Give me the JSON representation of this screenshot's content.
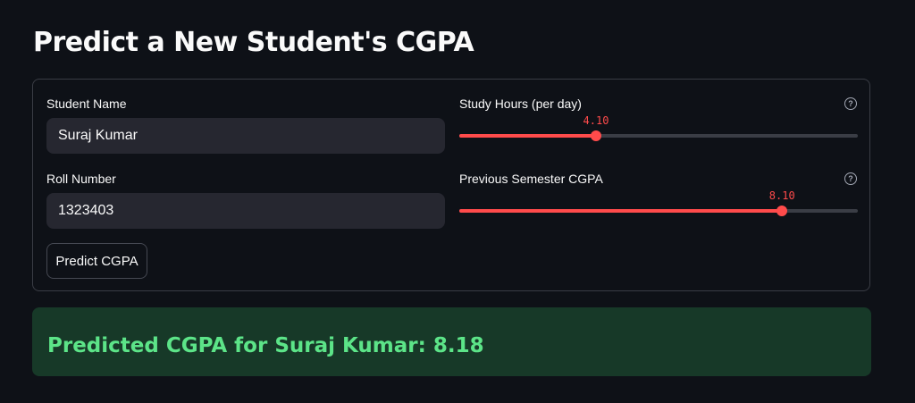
{
  "page": {
    "title": "Predict a New Student's CGPA"
  },
  "form": {
    "student_name": {
      "label": "Student Name",
      "value": "Suraj Kumar"
    },
    "roll_number": {
      "label": "Roll Number",
      "value": "1323403"
    },
    "study_hours": {
      "label": "Study Hours (per day)",
      "value_text": "4.10",
      "fraction": 0.343
    },
    "previous_cgpa": {
      "label": "Previous Semester CGPA",
      "value_text": "8.10",
      "fraction": 0.81
    },
    "predict_button": "Predict CGPA"
  },
  "result": {
    "text": "Predicted CGPA for Suraj Kumar: 8.18"
  },
  "colors": {
    "accent": "#ff4b4b",
    "success_bg": "#173928",
    "success_text": "#5ce488",
    "background": "#0e1117"
  }
}
